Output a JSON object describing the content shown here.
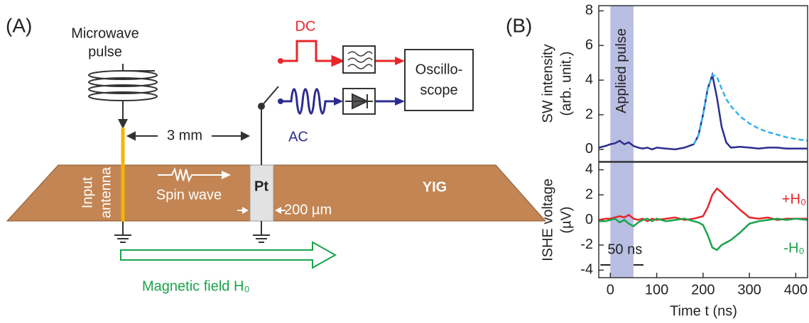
{
  "figure": {
    "panel_a_label": "(A)",
    "panel_b_label": "(B)",
    "diagram": {
      "microwave_label": [
        "Microwave",
        "pulse"
      ],
      "dc_label": "DC",
      "ac_label": "AC",
      "oscilloscope_label": [
        "Oscillo-",
        "scope"
      ],
      "distance_label": "3 mm",
      "antenna_label": [
        "Input",
        "antenna"
      ],
      "spin_wave_label": "Spin wave",
      "pt_label": "Pt",
      "yig_label": "YIG",
      "pt_width_label": "200 µm",
      "field_label": "Magnetic field H₀"
    }
  },
  "chart_data": [
    {
      "type": "line",
      "ylabel": [
        "SW intensity",
        "(arb. unit.)"
      ],
      "xlim": [
        -25,
        427
      ],
      "ylim": [
        -0.7,
        8.3
      ],
      "yticks": [
        0,
        2,
        4,
        6,
        8
      ],
      "span": {
        "x": [
          0,
          50
        ],
        "label": "Applied pulse",
        "color": "#b9bfe3"
      },
      "x": [
        -25,
        -10,
        0,
        10,
        20,
        30,
        40,
        50,
        60,
        70,
        80,
        90,
        100,
        120,
        140,
        160,
        180,
        190,
        200,
        210,
        220,
        230,
        240,
        250,
        260,
        280,
        300,
        320,
        340,
        360,
        380,
        400,
        425
      ],
      "series": [
        {
          "color": "#2b2d8f",
          "style": "solid",
          "values": [
            0.1,
            0.2,
            0.3,
            0.35,
            0.5,
            0.3,
            0.4,
            0.2,
            0.1,
            0.05,
            0.1,
            0,
            0.1,
            0.05,
            0,
            0.1,
            0.3,
            0.8,
            2.0,
            3.5,
            4.3,
            3.0,
            1.3,
            0.4,
            0.1,
            0.15,
            0.1,
            0.05,
            0.1,
            0.1,
            0.05,
            0.05,
            0.05
          ]
        },
        {
          "color": "#2fb4ea",
          "style": "dashed",
          "values": [
            null,
            null,
            null,
            null,
            null,
            null,
            null,
            null,
            null,
            null,
            null,
            null,
            null,
            null,
            null,
            null,
            0.3,
            0.8,
            2.0,
            3.5,
            4.3,
            4.2,
            3.5,
            2.9,
            2.5,
            1.9,
            1.5,
            1.2,
            1.0,
            0.85,
            0.7,
            0.6,
            0.5
          ]
        }
      ]
    },
    {
      "type": "line",
      "ylabel": [
        "ISHE voltage",
        "(µV)"
      ],
      "xlabel": "Time t (ns)",
      "xlim": [
        -25,
        427
      ],
      "ylim": [
        -4.6,
        4.6
      ],
      "yticks": [
        -4,
        -2,
        0,
        2,
        4
      ],
      "xticks": [
        0,
        100,
        200,
        300,
        400
      ],
      "span": {
        "x": [
          0,
          50
        ],
        "label": "50 ns",
        "color": "#b9bfe3"
      },
      "x": [
        -25,
        -10,
        0,
        10,
        20,
        30,
        40,
        50,
        60,
        70,
        80,
        90,
        100,
        120,
        140,
        160,
        180,
        190,
        200,
        210,
        220,
        230,
        240,
        250,
        260,
        280,
        300,
        320,
        340,
        360,
        380,
        400,
        425
      ],
      "series": [
        {
          "name": "+H₀",
          "color": "#e8262a",
          "style": "solid",
          "values": [
            0,
            0.1,
            0.1,
            0.2,
            0.3,
            0.2,
            0.4,
            0.1,
            0,
            0.1,
            -0.1,
            0.1,
            0,
            0.1,
            0.2,
            0,
            0.1,
            0.2,
            0.3,
            1.0,
            2.0,
            2.5,
            2.2,
            1.8,
            1.5,
            0.8,
            0.2,
            0.1,
            0.2,
            0,
            0.1,
            0.1,
            0.1
          ]
        },
        {
          "name": "-H₀",
          "color": "#1aa34a",
          "style": "solid",
          "values": [
            -0.1,
            -0.1,
            0,
            0.1,
            -0.2,
            0,
            -0.3,
            -0.5,
            -0.2,
            0,
            0.1,
            -0.1,
            0.1,
            -0.1,
            0,
            0.1,
            -0.1,
            -0.2,
            -0.4,
            -1.2,
            -2.2,
            -2.4,
            -2.0,
            -1.8,
            -1.6,
            -1.0,
            -0.3,
            -0.1,
            0,
            0.1,
            0,
            0.1,
            0
          ]
        }
      ]
    }
  ]
}
